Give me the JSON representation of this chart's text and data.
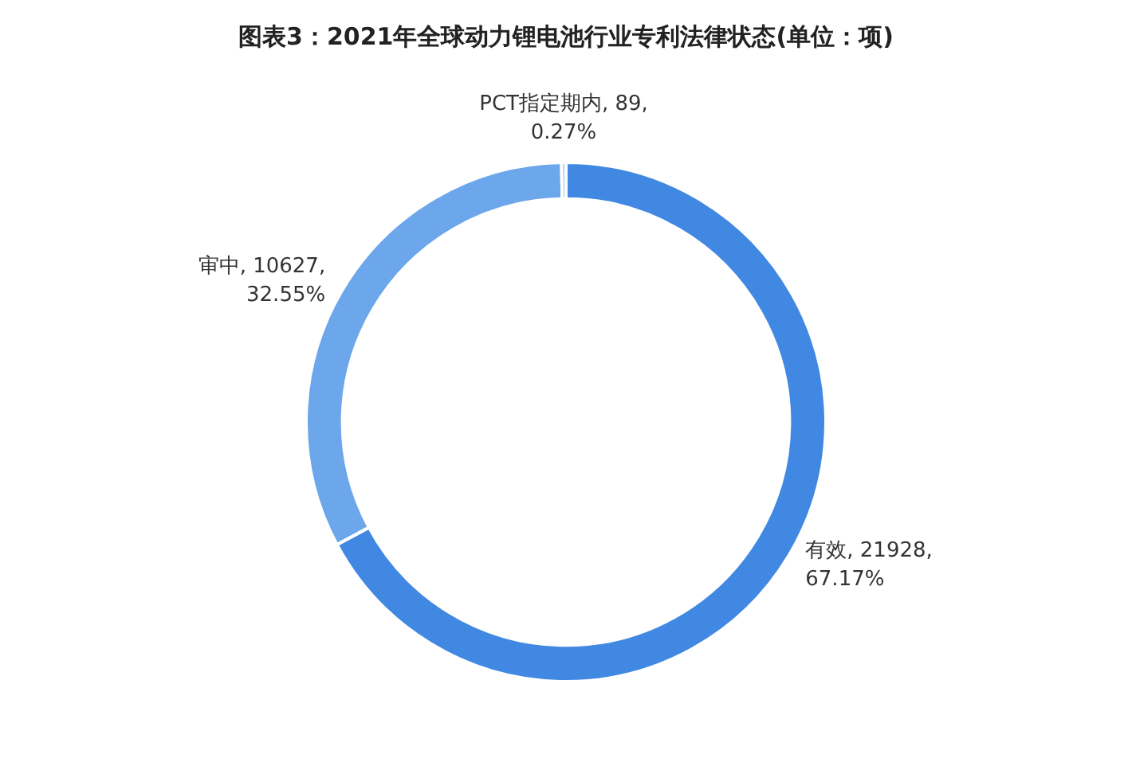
{
  "chart_data": {
    "type": "donut",
    "title": "图表3：2021年全球动力锂电池行业专利法律状态(单位：项)",
    "categories": [
      "有效",
      "审中",
      "PCT指定期内"
    ],
    "values": [
      21928,
      10627,
      89
    ],
    "value_labels": [
      "21928,\n67.17%",
      "10627,\n32.55%",
      "89,\n0.27%"
    ],
    "colors": [
      "#4188e2",
      "#6ca6eb",
      "#9dc4f2"
    ],
    "legend": false
  }
}
